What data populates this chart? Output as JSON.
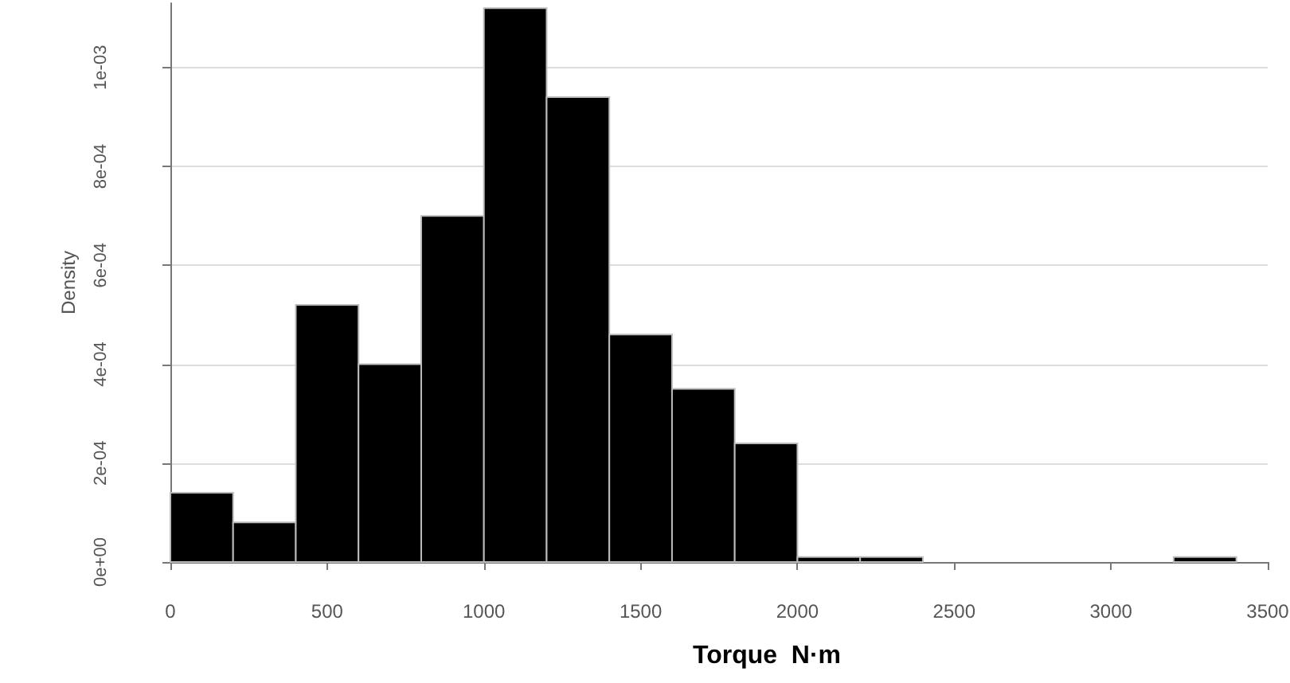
{
  "chart_data": {
    "type": "histogram",
    "xlabel": "Torque  N·m",
    "ylabel": "Density",
    "bins": [
      0,
      200,
      400,
      600,
      800,
      1000,
      1200,
      1400,
      1600,
      1800,
      2000,
      2200,
      2400,
      2600,
      2800,
      3000,
      3200,
      3400
    ],
    "values": [
      0.00014,
      8e-05,
      0.00052,
      0.0004,
      0.0007,
      0.00112,
      0.00094,
      0.00046,
      0.00035,
      0.00024,
      1e-05,
      1e-05,
      0,
      0,
      0,
      0,
      1e-05
    ],
    "color": "#000000",
    "xlim": [
      0,
      3500
    ],
    "xticks": [
      0,
      500,
      1000,
      1500,
      2000,
      2500,
      3000,
      3500
    ],
    "ylim": [
      0,
      0.00113
    ],
    "yticks": [
      {
        "value": 0,
        "label": "0e+00"
      },
      {
        "value": 0.0002,
        "label": "2e-04"
      },
      {
        "value": 0.0004,
        "label": "4e-04"
      },
      {
        "value": 0.0006,
        "label": "6e-04"
      },
      {
        "value": 0.0008,
        "label": "8e-04"
      },
      {
        "value": 0.001,
        "label": "1e-03"
      }
    ],
    "grid": "y"
  }
}
